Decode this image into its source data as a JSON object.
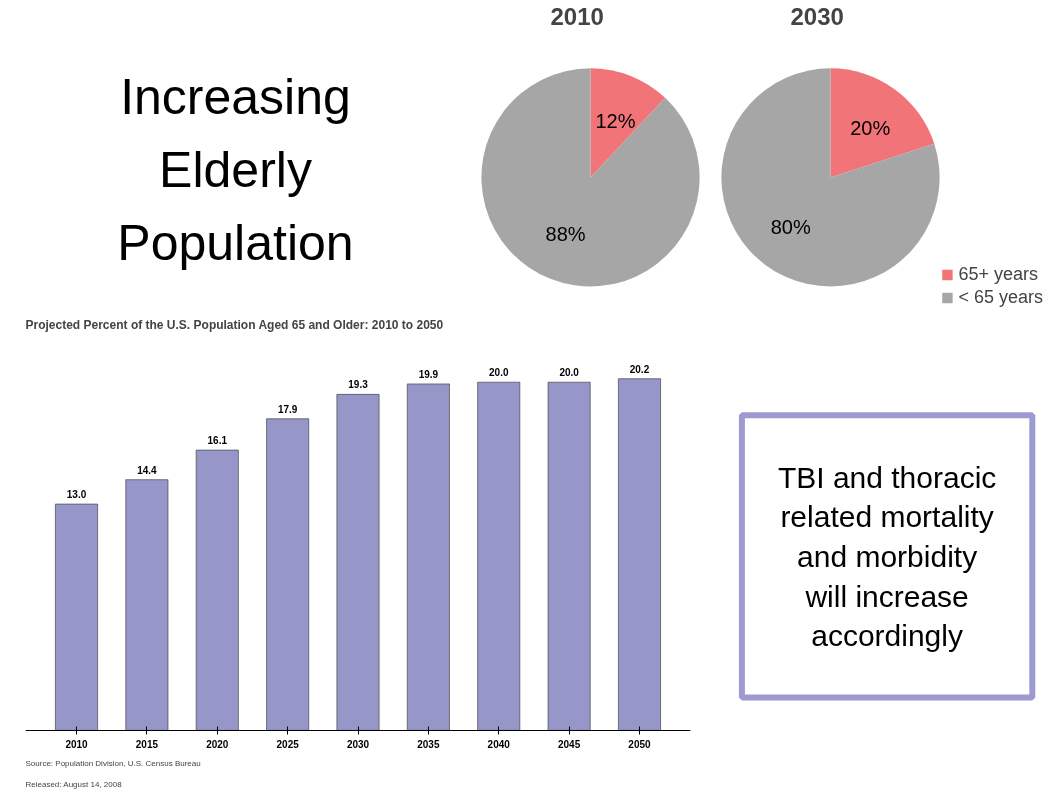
{
  "chart_data": [
    {
      "type": "other",
      "title": "Increasing Elderly Population"
    },
    {
      "type": "pie",
      "title": "2010",
      "categories": [
        "65+ years",
        "< 65 years"
      ],
      "values": [
        12,
        88
      ],
      "colors": [
        "#f07478",
        "#a6a6a6"
      ],
      "value_labels": [
        "12%",
        "88%"
      ],
      "legend": "right"
    },
    {
      "type": "pie",
      "title": "2030",
      "categories": [
        null,
        null
      ],
      "values": [
        20,
        80
      ],
      "colors": [
        "#f07478",
        "#a6a6a6"
      ],
      "value_labels": [
        "20%",
        "80%"
      ]
    },
    {
      "type": "bar",
      "title": "Projected Percent of the U.S. Population Aged 65 and Older: 2010 to 2050",
      "categories": [
        "2010",
        "2015",
        "2020",
        "2025",
        "2030",
        "2035",
        "2040",
        "2045",
        "2050"
      ],
      "values": [
        13.0,
        14.4,
        16.1,
        17.9,
        19.3,
        19.9,
        20.0,
        20.0,
        20.2
      ],
      "color": "#9696c8",
      "value_labels": [
        "13.0",
        "14.4",
        "16.1",
        "17.9",
        "19.3",
        "19.9",
        "20.0",
        "20.0",
        "20.2"
      ],
      "tick_labels": "x",
      "grid": false,
      "annotations": [
        "Source: Population Division, U.S. Census Bureau",
        "Released: August 14, 2008"
      ]
    },
    {
      "type": "other",
      "annotations": [
        "TBI and thoracic related mortality and morbidity will increase accordingly"
      ]
    }
  ]
}
